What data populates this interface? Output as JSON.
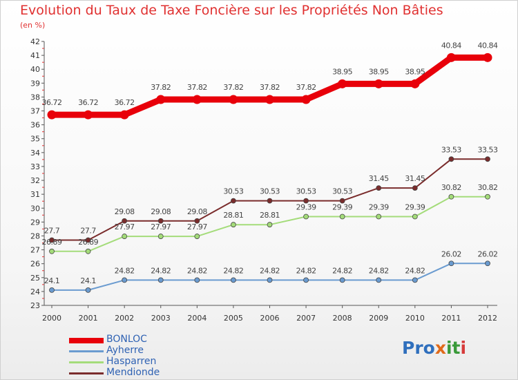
{
  "title": "Evolution du Taux de Taxe Foncière sur les Propriétés Non Bâties",
  "unit": "(en %)",
  "logo": {
    "parts": [
      "Pro",
      "x",
      "it",
      "i"
    ],
    "colors": [
      "#2f6fbd",
      "#e06a1a",
      "#3a9a3a",
      "#d63a3a"
    ]
  },
  "chart_data": {
    "type": "line",
    "title": "Evolution du Taux de Taxe Foncière sur les Propriétés Non Bâties",
    "ylabel": "(en %)",
    "xlabel": "",
    "ylim": [
      23,
      42
    ],
    "yticks": [
      23,
      24,
      25,
      26,
      27,
      28,
      29,
      30,
      31,
      32,
      33,
      34,
      35,
      36,
      37,
      38,
      39,
      40,
      41,
      42
    ],
    "x": [
      "2000",
      "2001",
      "2002",
      "2003",
      "2004",
      "2005",
      "2006",
      "2007",
      "2008",
      "2009",
      "2010",
      "2011",
      "2012"
    ],
    "grid": false,
    "legend_position": "bottom-left",
    "series": [
      {
        "name": "BONLOC",
        "color": "#e8000a",
        "values": [
          36.72,
          36.72,
          36.72,
          37.82,
          37.82,
          37.82,
          37.82,
          37.82,
          38.95,
          38.95,
          38.95,
          40.84,
          40.84
        ],
        "labels": [
          "36.72",
          "36.72",
          "36.72",
          "37.82",
          "37.82",
          "37.82",
          "37.82",
          "37.82",
          "38.95",
          "38.95",
          "38.95",
          "40.84",
          "40.84"
        ]
      },
      {
        "name": "Ayherre",
        "color": "#6a9bd0",
        "values": [
          24.1,
          24.1,
          24.82,
          24.82,
          24.82,
          24.82,
          24.82,
          24.82,
          24.82,
          24.82,
          24.82,
          26.02,
          26.02
        ],
        "labels": [
          "24.1",
          "24.1",
          "24.82",
          "24.82",
          "24.82",
          "24.82",
          "24.82",
          "24.82",
          "24.82",
          "24.82",
          "24.82",
          "26.02",
          "26.02"
        ]
      },
      {
        "name": "Hasparren",
        "color": "#a4dc7a",
        "values": [
          26.89,
          26.89,
          27.97,
          27.97,
          27.97,
          28.81,
          28.81,
          29.39,
          29.39,
          29.39,
          29.39,
          30.82,
          30.82
        ],
        "labels": [
          "26.89",
          "26.89",
          "27.97",
          "27.97",
          "27.97",
          "28.81",
          "28.81",
          "29.39",
          "29.39",
          "29.39",
          "29.39",
          "30.82",
          "30.82"
        ]
      },
      {
        "name": "Mendionde",
        "color": "#7a2c2c",
        "values": [
          27.7,
          27.7,
          29.08,
          29.08,
          29.08,
          30.53,
          30.53,
          30.53,
          30.53,
          31.45,
          31.45,
          33.53,
          33.53
        ],
        "labels": [
          "27.7",
          "27.7",
          "29.08",
          "29.08",
          "29.08",
          "30.53",
          "30.53",
          "30.53",
          "30.53",
          "31.45",
          "31.45",
          "33.53",
          "33.53"
        ]
      }
    ]
  }
}
